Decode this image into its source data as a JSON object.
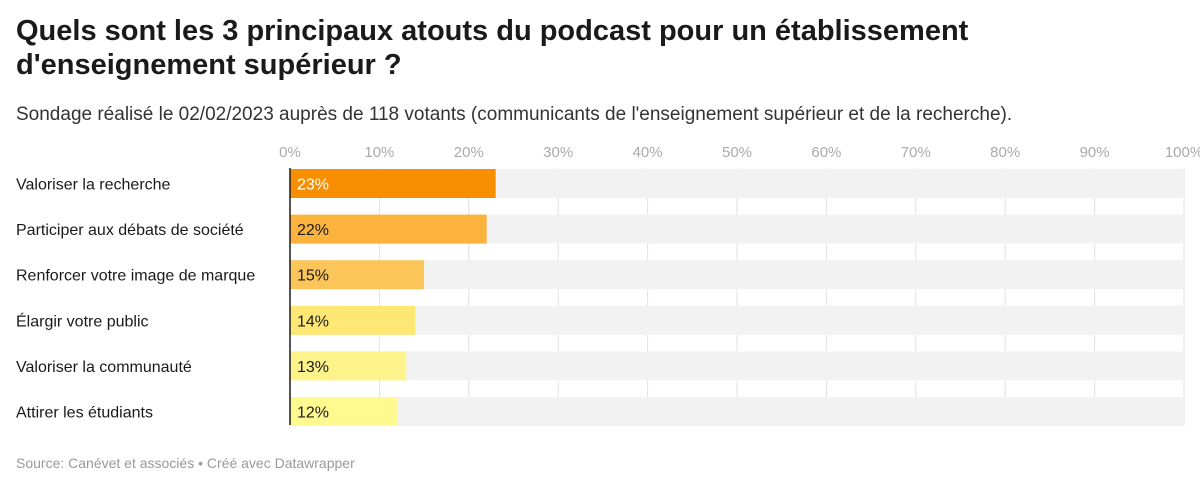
{
  "chart_data": {
    "type": "bar",
    "orientation": "horizontal",
    "title": "Quels sont les 3 principaux atouts du podcast pour un établissement d'enseignement supérieur ?",
    "subtitle": "Sondage réalisé le 02/02/2023 auprès de 118 votants (communicants de l'enseignement supérieur et de la recherche).",
    "categories": [
      "Valoriser la recherche",
      "Participer aux débats de société",
      "Renforcer votre image de marque",
      "Élargir votre public",
      "Valoriser la communauté",
      "Attirer les étudiants"
    ],
    "values": [
      23,
      22,
      15,
      14,
      13,
      12
    ],
    "value_labels": [
      "23%",
      "22%",
      "15%",
      "14%",
      "13%",
      "12%"
    ],
    "bar_colors": [
      "#f78f00",
      "#fbb33d",
      "#fcc55a",
      "#fee773",
      "#fef28a",
      "#fff98f"
    ],
    "value_label_colors": [
      "#ffffff",
      "#1a1a1a",
      "#1a1a1a",
      "#1a1a1a",
      "#1a1a1a",
      "#1a1a1a"
    ],
    "background_bar_color": "#f2f2f2",
    "xlim": [
      0,
      100
    ],
    "x_ticks": [
      0,
      10,
      20,
      30,
      40,
      50,
      60,
      70,
      80,
      90,
      100
    ],
    "x_tick_labels": [
      "0%",
      "10%",
      "20%",
      "30%",
      "40%",
      "50%",
      "60%",
      "70%",
      "80%",
      "90%",
      "100%"
    ],
    "grid": true,
    "footer": "Source: Canévet et associés • Créé avec Datawrapper"
  }
}
